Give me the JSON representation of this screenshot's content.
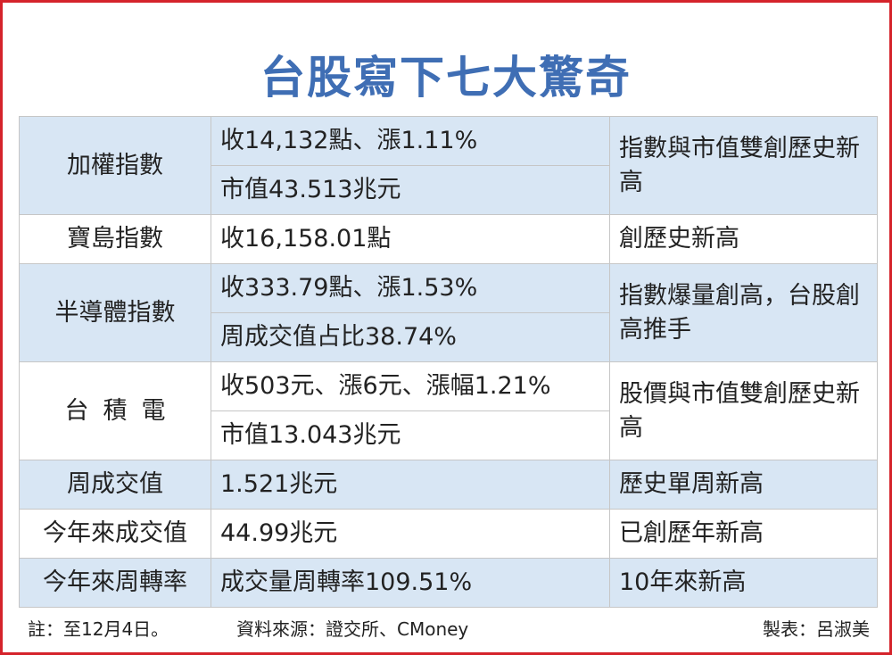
{
  "title": "台股寫下七大驚奇",
  "rows": [
    {
      "label": "加權指數",
      "values": [
        "收14,132點、漲1.11%",
        "市值43.513兆元"
      ],
      "note": "指數與市值雙創歷史新高"
    },
    {
      "label": "寶島指數",
      "values": [
        "收16,158.01點"
      ],
      "note": "創歷史新高"
    },
    {
      "label": "半導體指數",
      "values": [
        "收333.79點、漲1.53%",
        "周成交值占比38.74%"
      ],
      "note": "指數爆量創高，台股創高推手"
    },
    {
      "label": "台積電",
      "values": [
        "收503元、漲6元、漲幅1.21%",
        "市值13.043兆元"
      ],
      "note": "股價與市值雙創歷史新高"
    },
    {
      "label": "周成交值",
      "values": [
        "1.521兆元"
      ],
      "note": "歷史單周新高"
    },
    {
      "label": "今年來成交值",
      "values": [
        "44.99兆元"
      ],
      "note": "已創歷年新高"
    },
    {
      "label": "今年來周轉率",
      "values": [
        "成交量周轉率109.51%"
      ],
      "note": "10年來新高"
    }
  ],
  "footer": {
    "note": "註：至12月4日。",
    "source": "資料來源：證交所、CMoney",
    "credit": "製表：呂淑美"
  },
  "colors": {
    "title": "#3f6eb4",
    "row_band": "#d8e6f4",
    "frame": "#d5232b"
  }
}
